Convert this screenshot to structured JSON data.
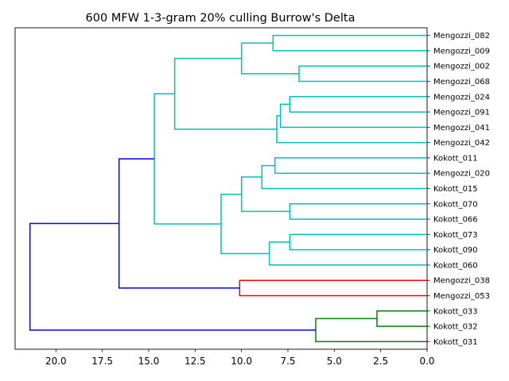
{
  "chart_data": {
    "type": "dendrogram",
    "title": "600 MFW 1-3-gram 20% culling Burrow's Delta",
    "orientation": "left",
    "xlim": [
      22.2,
      0
    ],
    "xticks": [
      "20.0",
      "17.5",
      "15.0",
      "12.5",
      "10.0",
      "7.5",
      "5.0",
      "2.5",
      "0.0"
    ],
    "xtick_values": [
      20,
      17.5,
      15,
      12.5,
      10,
      7.5,
      5,
      2.5,
      0
    ],
    "leaves": [
      "Mengozzi_082",
      "Mengozzi_009",
      "Mengozzi_002",
      "Mengozzi_068",
      "Mengozzi_024",
      "Mengozzi_091",
      "Mengozzi_041",
      "Mengozzi_042",
      "Kokott_011",
      "Mengozzi_020",
      "Kokott_015",
      "Kokott_070",
      "Kokott_066",
      "Kokott_073",
      "Kokott_090",
      "Kokott_060",
      "Mengozzi_038",
      "Mengozzi_053",
      "Kokott_033",
      "Kokott_032",
      "Kokott_031"
    ],
    "colors": {
      "cyan": "#00bfbf",
      "red": "#ff0000",
      "green": "#008000",
      "blue": "#0000ff"
    },
    "merges": [
      {
        "a": "L0",
        "b": "L1",
        "height": 8.3,
        "color": "cyan"
      },
      {
        "a": "L2",
        "b": "L3",
        "height": 6.9,
        "color": "cyan"
      },
      {
        "a": "m0",
        "b": "m1",
        "height": 10.0,
        "color": "cyan"
      },
      {
        "a": "L4",
        "b": "L5",
        "height": 7.4,
        "color": "cyan"
      },
      {
        "a": "m3",
        "b": "L6",
        "height": 7.9,
        "color": "cyan"
      },
      {
        "a": "m4",
        "b": "L7",
        "height": 8.1,
        "color": "cyan"
      },
      {
        "a": "m2",
        "b": "m5",
        "height": 13.6,
        "color": "cyan"
      },
      {
        "a": "L8",
        "b": "L9",
        "height": 8.2,
        "color": "cyan"
      },
      {
        "a": "m7",
        "b": "L10",
        "height": 8.9,
        "color": "cyan"
      },
      {
        "a": "L11",
        "b": "L12",
        "height": 7.4,
        "color": "cyan"
      },
      {
        "a": "m8",
        "b": "m9",
        "height": 10.0,
        "color": "cyan"
      },
      {
        "a": "L13",
        "b": "L14",
        "height": 7.4,
        "color": "cyan"
      },
      {
        "a": "m11",
        "b": "L15",
        "height": 8.5,
        "color": "cyan"
      },
      {
        "a": "m10",
        "b": "m12",
        "height": 11.1,
        "color": "cyan"
      },
      {
        "a": "m6",
        "b": "m13",
        "height": 14.7,
        "color": "cyan"
      },
      {
        "a": "L16",
        "b": "L17",
        "height": 10.1,
        "color": "red"
      },
      {
        "a": "m14",
        "b": "m15",
        "height": 16.6,
        "color": "blue"
      },
      {
        "a": "L18",
        "b": "L19",
        "height": 2.7,
        "color": "green"
      },
      {
        "a": "m17",
        "b": "L20",
        "height": 6.0,
        "color": "green"
      },
      {
        "a": "m16",
        "b": "m18",
        "height": 21.4,
        "color": "blue"
      }
    ]
  }
}
